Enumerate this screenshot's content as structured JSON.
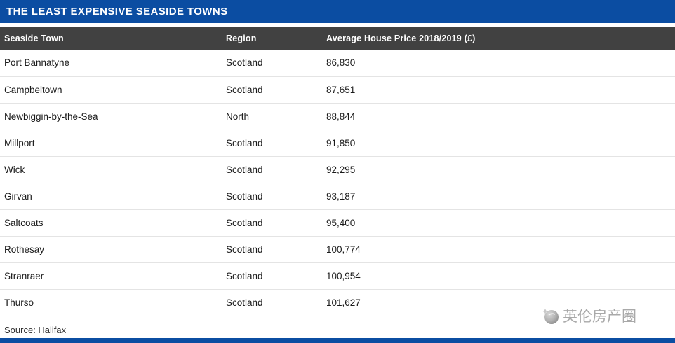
{
  "page": {
    "title": "THE LEAST EXPENSIVE SEASIDE TOWNS",
    "source": "Source: Halifax"
  },
  "colors": {
    "accent_blue": "#0b4da2",
    "header_dark": "#414141",
    "row_divider": "#e4e4e4",
    "watermark_gray": "#a9a9a9"
  },
  "table": {
    "columns": [
      "Seaside Town",
      "Region",
      "Average House Price 2018/2019 (£)"
    ],
    "rows": [
      {
        "town": "Port Bannatyne",
        "region": "Scotland",
        "price": "86,830"
      },
      {
        "town": "Campbeltown",
        "region": "Scotland",
        "price": "87,651"
      },
      {
        "town": "Newbiggin-by-the-Sea",
        "region": "North",
        "price": "88,844"
      },
      {
        "town": "Millport",
        "region": "Scotland",
        "price": "91,850"
      },
      {
        "town": "Wick",
        "region": "Scotland",
        "price": "92,295"
      },
      {
        "town": "Girvan",
        "region": "Scotland",
        "price": "93,187"
      },
      {
        "town": "Saltcoats",
        "region": "Scotland",
        "price": "95,400"
      },
      {
        "town": "Rothesay",
        "region": "Scotland",
        "price": "100,774"
      },
      {
        "town": "Stranraer",
        "region": "Scotland",
        "price": "100,954"
      },
      {
        "town": "Thurso",
        "region": "Scotland",
        "price": "101,627"
      }
    ]
  },
  "watermark": {
    "text": "英伦房产圈"
  },
  "chart_data": {
    "type": "table",
    "title": "THE LEAST EXPENSIVE SEASIDE TOWNS",
    "columns": [
      "Seaside Town",
      "Region",
      "Average House Price 2018/2019 (£)"
    ],
    "rows": [
      [
        "Port Bannatyne",
        "Scotland",
        86830
      ],
      [
        "Campbeltown",
        "Scotland",
        87651
      ],
      [
        "Newbiggin-by-the-Sea",
        "North",
        88844
      ],
      [
        "Millport",
        "Scotland",
        91850
      ],
      [
        "Wick",
        "Scotland",
        92295
      ],
      [
        "Girvan",
        "Scotland",
        93187
      ],
      [
        "Saltcoats",
        "Scotland",
        95400
      ],
      [
        "Rothesay",
        "Scotland",
        100774
      ],
      [
        "Stranraer",
        "Scotland",
        100954
      ],
      [
        "Thurso",
        "Scotland",
        101627
      ]
    ],
    "source": "Halifax"
  }
}
